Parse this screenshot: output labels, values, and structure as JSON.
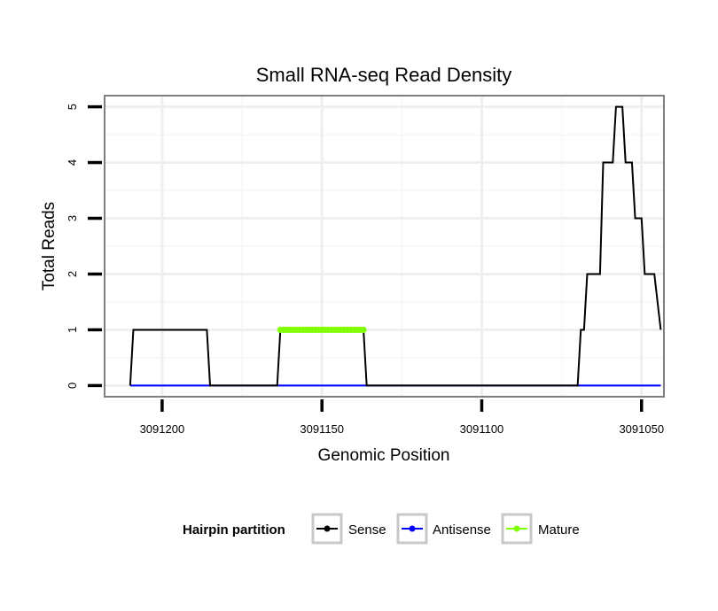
{
  "chart_data": {
    "type": "line",
    "title": "Small RNA-seq Read Density",
    "xlabel": "Genomic Position",
    "ylabel": "Total Reads",
    "xlim": [
      3091218,
      3091043
    ],
    "x_reversed": true,
    "ylim": [
      -0.2,
      5.2
    ],
    "x_ticks": [
      3091200,
      3091150,
      3091100,
      3091050
    ],
    "x_tick_labels": [
      "3091200",
      "3091150",
      "3091100",
      "3091050"
    ],
    "y_ticks": [
      0,
      1,
      2,
      3,
      4,
      5
    ],
    "y_tick_labels": [
      "0",
      "1",
      "2",
      "3",
      "4",
      "5"
    ],
    "grid": true,
    "legend": {
      "title": "Hairpin partition",
      "position": "bottom",
      "entries": [
        "Sense",
        "Antisense",
        "Mature"
      ]
    },
    "series": [
      {
        "name": "Sense",
        "color": "#000000",
        "x": [
          3091210,
          3091209,
          3091198,
          3091197,
          3091186,
          3091185,
          3091164,
          3091163,
          3091137,
          3091136,
          3091109,
          3091108,
          3091070,
          3091069,
          3091068,
          3091067,
          3091066,
          3091063,
          3091062,
          3091060,
          3091059,
          3091058,
          3091057,
          3091056,
          3091055,
          3091053,
          3091052,
          3091050,
          3091049,
          3091047,
          3091046,
          3091044
        ],
        "y": [
          0,
          1,
          1,
          1,
          1,
          0,
          0,
          1,
          1,
          0,
          0,
          0,
          0,
          1,
          1,
          2,
          2,
          2,
          4,
          4,
          4,
          5,
          5,
          5,
          4,
          4,
          3,
          3,
          2,
          2,
          2,
          1
        ]
      },
      {
        "name": "Antisense",
        "color": "#0000ff",
        "x": [
          3091210,
          3091044
        ],
        "y": [
          0,
          0
        ]
      },
      {
        "name": "Mature",
        "color": "#7fff00",
        "x": [
          3091163,
          3091162,
          3091161,
          3091160,
          3091159,
          3091158,
          3091157,
          3091156,
          3091155,
          3091154,
          3091153,
          3091152,
          3091151,
          3091150,
          3091149,
          3091148,
          3091147,
          3091146,
          3091145,
          3091144,
          3091143,
          3091142,
          3091141,
          3091140,
          3091139,
          3091138,
          3091137
        ],
        "y": [
          1,
          1,
          1,
          1,
          1,
          1,
          1,
          1,
          1,
          1,
          1,
          1,
          1,
          1,
          1,
          1,
          1,
          1,
          1,
          1,
          1,
          1,
          1,
          1,
          1,
          1,
          1
        ]
      }
    ]
  }
}
